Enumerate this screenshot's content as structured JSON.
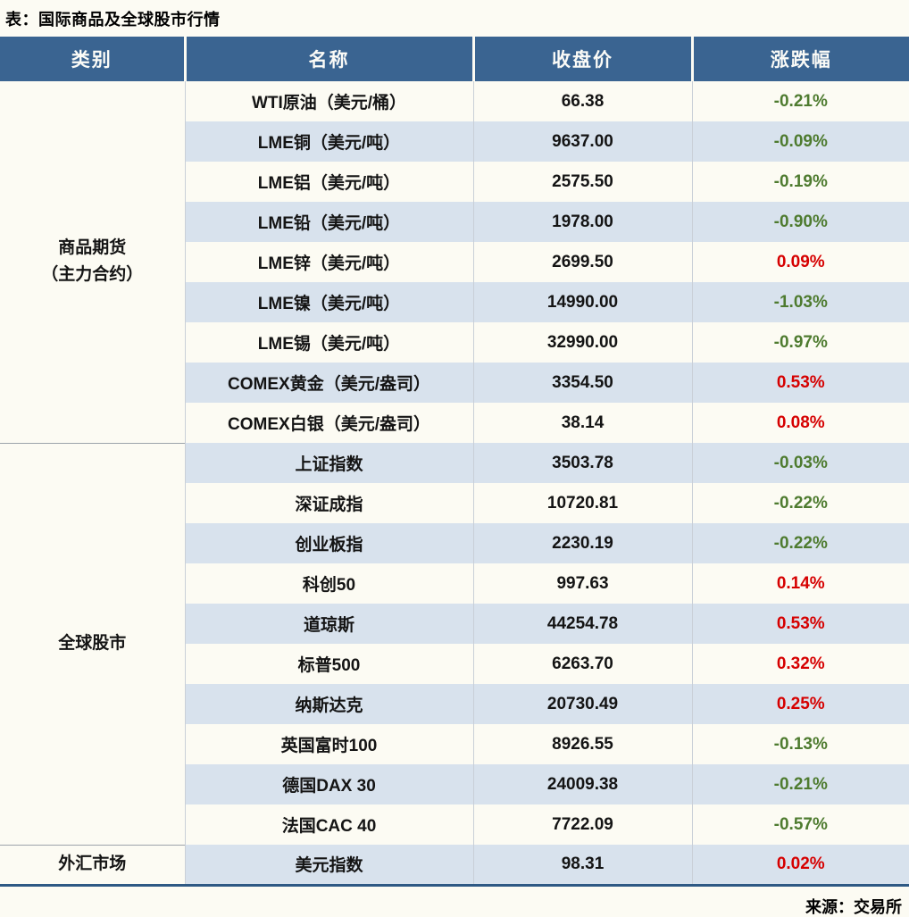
{
  "page": {
    "title": "表：国际商品及全球股市行情",
    "source": "来源：交易所"
  },
  "table": {
    "headers": [
      "类别",
      "名称",
      "收盘价",
      "涨跌幅"
    ],
    "colors": {
      "header_bg": "#3A6491",
      "stripe": "#D8E2ED",
      "positive_red": "#D60000",
      "negative_green": "#4E7B2F",
      "bottom_border": "#2E5984"
    },
    "groups": [
      {
        "category": "商品期货\n（主力合约）",
        "rows": [
          {
            "name": "WTI原油（美元/桶）",
            "close": "66.38",
            "change": "-0.21%"
          },
          {
            "name": "LME铜（美元/吨）",
            "close": "9637.00",
            "change": "-0.09%"
          },
          {
            "name": "LME铝（美元/吨）",
            "close": "2575.50",
            "change": "-0.19%"
          },
          {
            "name": "LME铅（美元/吨）",
            "close": "1978.00",
            "change": "-0.90%"
          },
          {
            "name": "LME锌（美元/吨）",
            "close": "2699.50",
            "change": "0.09%"
          },
          {
            "name": "LME镍（美元/吨）",
            "close": "14990.00",
            "change": "-1.03%"
          },
          {
            "name": "LME锡（美元/吨）",
            "close": "32990.00",
            "change": "-0.97%"
          },
          {
            "name": "COMEX黄金（美元/盎司）",
            "close": "3354.50",
            "change": "0.53%"
          },
          {
            "name": "COMEX白银（美元/盎司）",
            "close": "38.14",
            "change": "0.08%"
          }
        ]
      },
      {
        "category": "全球股市",
        "rows": [
          {
            "name": "上证指数",
            "close": "3503.78",
            "change": "-0.03%"
          },
          {
            "name": "深证成指",
            "close": "10720.81",
            "change": "-0.22%"
          },
          {
            "name": "创业板指",
            "close": "2230.19",
            "change": "-0.22%"
          },
          {
            "name": "科创50",
            "close": "997.63",
            "change": "0.14%"
          },
          {
            "name": "道琼斯",
            "close": "44254.78",
            "change": "0.53%"
          },
          {
            "name": "标普500",
            "close": "6263.70",
            "change": "0.32%"
          },
          {
            "name": "纳斯达克",
            "close": "20730.49",
            "change": "0.25%"
          },
          {
            "name": "英国富时100",
            "close": "8926.55",
            "change": "-0.13%"
          },
          {
            "name": "德国DAX 30",
            "close": "24009.38",
            "change": "-0.21%"
          },
          {
            "name": "法国CAC 40",
            "close": "7722.09",
            "change": "-0.57%"
          }
        ]
      },
      {
        "category": "外汇市场",
        "rows": [
          {
            "name": "美元指数",
            "close": "98.31",
            "change": "0.02%"
          }
        ]
      }
    ]
  },
  "chart_data": {
    "type": "table",
    "title": "表：国际商品及全球股市行情",
    "source": "来源：交易所",
    "columns": [
      "类别",
      "名称",
      "收盘价",
      "涨跌幅"
    ],
    "rows": [
      [
        "商品期货（主力合约）",
        "WTI原油（美元/桶）",
        66.38,
        "-0.21%"
      ],
      [
        "商品期货（主力合约）",
        "LME铜（美元/吨）",
        9637.0,
        "-0.09%"
      ],
      [
        "商品期货（主力合约）",
        "LME铝（美元/吨）",
        2575.5,
        "-0.19%"
      ],
      [
        "商品期货（主力合约）",
        "LME铅（美元/吨）",
        1978.0,
        "-0.90%"
      ],
      [
        "商品期货（主力合约）",
        "LME锌（美元/吨）",
        2699.5,
        "0.09%"
      ],
      [
        "商品期货（主力合约）",
        "LME镍（美元/吨）",
        14990.0,
        "-1.03%"
      ],
      [
        "商品期货（主力合约）",
        "LME锡（美元/吨）",
        32990.0,
        "-0.97%"
      ],
      [
        "商品期货（主力合约）",
        "COMEX黄金（美元/盎司）",
        3354.5,
        "0.53%"
      ],
      [
        "商品期货（主力合约）",
        "COMEX白银（美元/盎司）",
        38.14,
        "0.08%"
      ],
      [
        "全球股市",
        "上证指数",
        3503.78,
        "-0.03%"
      ],
      [
        "全球股市",
        "深证成指",
        10720.81,
        "-0.22%"
      ],
      [
        "全球股市",
        "创业板指",
        2230.19,
        "-0.22%"
      ],
      [
        "全球股市",
        "科创50",
        997.63,
        "0.14%"
      ],
      [
        "全球股市",
        "道琼斯",
        44254.78,
        "0.53%"
      ],
      [
        "全球股市",
        "标普500",
        6263.7,
        "0.32%"
      ],
      [
        "全球股市",
        "纳斯达克",
        20730.49,
        "0.25%"
      ],
      [
        "全球股市",
        "英国富时100",
        8926.55,
        "-0.13%"
      ],
      [
        "全球股市",
        "德国DAX 30",
        24009.38,
        "-0.21%"
      ],
      [
        "全球股市",
        "法国CAC 40",
        7722.09,
        "-0.57%"
      ],
      [
        "外汇市场",
        "美元指数",
        98.31,
        "0.02%"
      ]
    ]
  }
}
